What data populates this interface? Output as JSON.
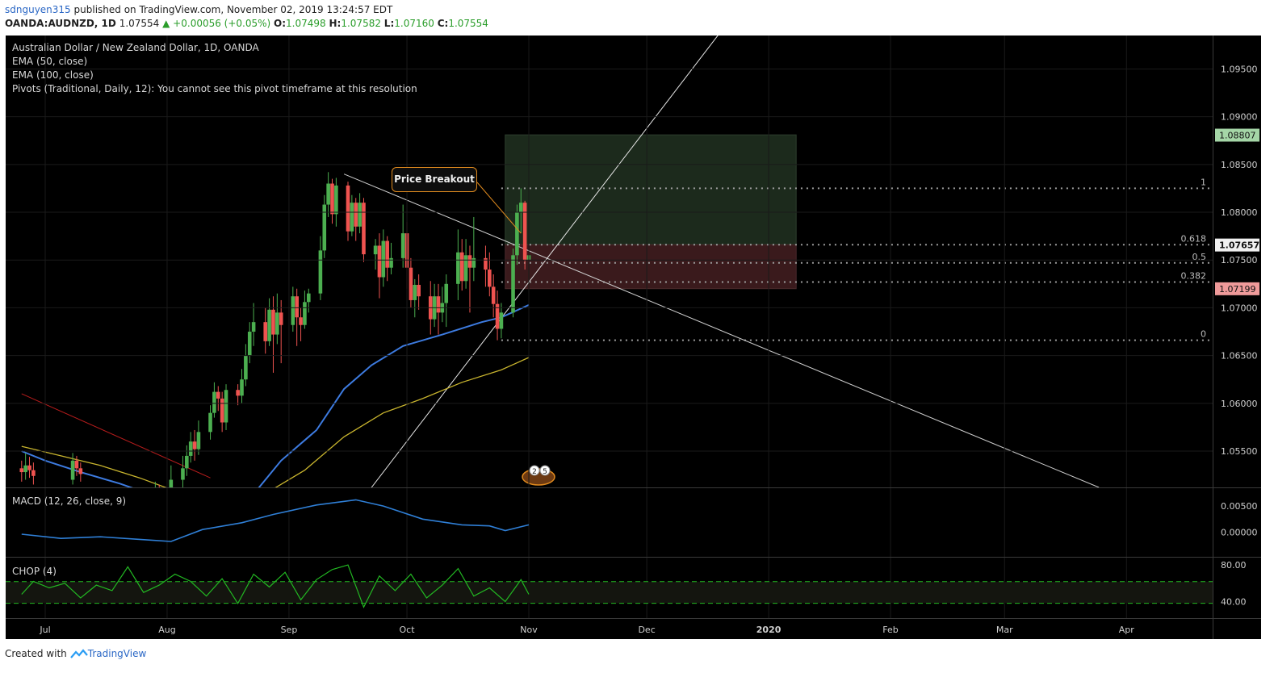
{
  "header": {
    "user": "sdnguyen315",
    "published_text": "published on TradingView.com, November 02, 2019 13:24:57 EDT",
    "symbol": "OANDA:AUDNZD, 1D",
    "last": "1.07554",
    "change": "▲ +0.00056 (+0.05%)",
    "ohlc_o_label": "O:",
    "ohlc_o": "1.07498",
    "ohlc_h_label": "H:",
    "ohlc_h": "1.07582",
    "ohlc_l_label": "L:",
    "ohlc_l": "1.07160",
    "ohlc_c_label": "C:",
    "ohlc_c": "1.07554"
  },
  "legend": {
    "title": "Australian Dollar / New Zealand Dollar, 1D, OANDA",
    "ema50": "EMA (50, close)",
    "ema100": "EMA (100, close)",
    "pivots": "Pivots (Traditional, Daily, 12): You cannot see this pivot timeframe at this resolution"
  },
  "annotation": {
    "callout": "Price Breakout"
  },
  "indicators": {
    "macd_label": "MACD (12, 26, close, 9)",
    "chop_label": "CHOP (4)"
  },
  "footer": {
    "created_with": "Created with",
    "brand": "TradingView"
  },
  "colors": {
    "background": "#000000",
    "up": "#4caf50",
    "down": "#ef5350",
    "ema50": "#3d7be0",
    "ema100": "#c9b52e",
    "macd": "#2f7fd6",
    "chop": "#22b822",
    "target_zone": "#1c2a1c",
    "stop_zone": "#3a1a1c",
    "price_tag_target": "#a5d6a7",
    "price_tag_current": "#f0f0f0",
    "price_tag_stop": "#ef9a9a"
  },
  "chart_data": {
    "type": "candlestick",
    "y_axis_ticks": [
      "1.09500",
      "1.09000",
      "1.08500",
      "1.08000",
      "1.07500",
      "1.07000",
      "1.06500",
      "1.06000",
      "1.05500"
    ],
    "ylim": [
      1.0512,
      1.0985
    ],
    "x_axis_labels": [
      "Jul",
      "Aug",
      "Sep",
      "Oct",
      "Nov",
      "Dec",
      "2020",
      "Feb",
      "Mar",
      "Apr"
    ],
    "x_axis_dates": [
      "2019-07-01",
      "2019-08-01",
      "2019-09-01",
      "2019-10-01",
      "2019-11-01",
      "2019-12-01",
      "2020-01-01",
      "2020-02-01",
      "2020-03-01",
      "2020-04-01"
    ],
    "price_labels": {
      "target": "1.08807",
      "current": "1.07657",
      "stop": "1.07199"
    },
    "fib_levels": [
      {
        "label": "1",
        "value": 1.0825
      },
      {
        "label": "0.618",
        "value": 1.0766
      },
      {
        "label": "0.5",
        "value": 1.0747
      },
      {
        "label": "0.382",
        "value": 1.0727
      },
      {
        "label": "0",
        "value": 1.0666
      }
    ],
    "position": {
      "entry": 1.0766,
      "target": 1.0881,
      "stop": 1.072
    },
    "candles": [
      [
        "2019-06-25",
        1.0532,
        1.0528,
        1.054,
        1.0518
      ],
      [
        "2019-06-26",
        1.0528,
        1.0535,
        1.0548,
        1.052
      ],
      [
        "2019-06-27",
        1.0535,
        1.053,
        1.0544,
        1.0522
      ],
      [
        "2019-06-28",
        1.053,
        1.0524,
        1.0538,
        1.0515
      ],
      [
        "2019-07-08",
        1.052,
        1.054,
        1.0548,
        1.0515
      ],
      [
        "2019-07-09",
        1.054,
        1.0532,
        1.0545,
        1.0524
      ],
      [
        "2019-07-10",
        1.0532,
        1.0526,
        1.0538,
        1.0518
      ],
      [
        "2019-07-29",
        1.0505,
        1.051,
        1.0518,
        1.0498
      ],
      [
        "2019-07-30",
        1.051,
        1.0505,
        1.0515,
        1.0495
      ],
      [
        "2019-08-02",
        1.0508,
        1.052,
        1.0535,
        1.0502
      ],
      [
        "2019-08-05",
        1.052,
        1.0532,
        1.0545,
        1.0512
      ],
      [
        "2019-08-06",
        1.0532,
        1.0545,
        1.0556,
        1.0524
      ],
      [
        "2019-08-07",
        1.0545,
        1.056,
        1.057,
        1.0538
      ],
      [
        "2019-08-08",
        1.056,
        1.0552,
        1.0572,
        1.054
      ],
      [
        "2019-08-09",
        1.0552,
        1.057,
        1.0582,
        1.0546
      ],
      [
        "2019-08-12",
        1.057,
        1.059,
        1.0598,
        1.0562
      ],
      [
        "2019-08-13",
        1.059,
        1.0612,
        1.0622,
        1.0585
      ],
      [
        "2019-08-14",
        1.0612,
        1.0605,
        1.0618,
        1.0592
      ],
      [
        "2019-08-15",
        1.0605,
        1.058,
        1.0612,
        1.057
      ],
      [
        "2019-08-16",
        1.058,
        1.0614,
        1.062,
        1.0572
      ],
      [
        "2019-08-19",
        1.0614,
        1.0608,
        1.062,
        1.0598
      ],
      [
        "2019-08-20",
        1.0608,
        1.0625,
        1.0636,
        1.06
      ],
      [
        "2019-08-21",
        1.0625,
        1.065,
        1.0662,
        1.0618
      ],
      [
        "2019-08-22",
        1.065,
        1.0675,
        1.0685,
        1.0642
      ],
      [
        "2019-08-23",
        1.0675,
        1.0685,
        1.0705,
        1.066
      ],
      [
        "2019-08-26",
        1.0685,
        1.0665,
        1.07,
        1.0652
      ],
      [
        "2019-08-27",
        1.0665,
        1.0698,
        1.071,
        1.066
      ],
      [
        "2019-08-28",
        1.0698,
        1.0672,
        1.0712,
        1.0632
      ],
      [
        "2019-08-29",
        1.0672,
        1.0695,
        1.0715,
        1.0662
      ],
      [
        "2019-08-30",
        1.0695,
        1.0682,
        1.0708,
        1.0642
      ],
      [
        "2019-09-02",
        1.0682,
        1.0712,
        1.0722,
        1.0675
      ],
      [
        "2019-09-03",
        1.0712,
        1.069,
        1.072,
        1.066
      ],
      [
        "2019-09-04",
        1.069,
        1.0682,
        1.07,
        1.0665
      ],
      [
        "2019-09-05",
        1.0682,
        1.0706,
        1.0718,
        1.0678
      ],
      [
        "2019-09-06",
        1.0706,
        1.0715,
        1.072,
        1.0695
      ],
      [
        "2019-09-09",
        1.0715,
        1.076,
        1.0775,
        1.0708
      ],
      [
        "2019-09-10",
        1.076,
        1.0808,
        1.0818,
        1.0752
      ],
      [
        "2019-09-11",
        1.0808,
        1.083,
        1.0842,
        1.0795
      ],
      [
        "2019-09-12",
        1.083,
        1.0798,
        1.0835,
        1.0788
      ],
      [
        "2019-09-13",
        1.0798,
        1.0828,
        1.0836,
        1.0785
      ],
      [
        "2019-09-16",
        1.0828,
        1.078,
        1.0832,
        1.077
      ],
      [
        "2019-09-17",
        1.078,
        1.081,
        1.0818,
        1.0775
      ],
      [
        "2019-09-18",
        1.081,
        1.0785,
        1.0815,
        1.077
      ],
      [
        "2019-09-19",
        1.0785,
        1.081,
        1.082,
        1.0778
      ],
      [
        "2019-09-20",
        1.081,
        1.0756,
        1.0815,
        1.0748
      ],
      [
        "2019-09-23",
        1.0756,
        1.0765,
        1.0772,
        1.074
      ],
      [
        "2019-09-24",
        1.0765,
        1.0732,
        1.0778,
        1.071
      ],
      [
        "2019-09-25",
        1.0732,
        1.077,
        1.0782,
        1.0722
      ],
      [
        "2019-09-26",
        1.077,
        1.0742,
        1.0775,
        1.0728
      ],
      [
        "2019-09-27",
        1.0742,
        1.0752,
        1.0768,
        1.0735
      ],
      [
        "2019-09-30",
        1.0752,
        1.0778,
        1.0808,
        1.0742
      ],
      [
        "2019-10-01",
        1.0778,
        1.0742,
        1.079,
        1.072
      ],
      [
        "2019-10-02",
        1.0742,
        1.0708,
        1.0752,
        1.07
      ],
      [
        "2019-10-03",
        1.0708,
        1.0724,
        1.073,
        1.069
      ],
      [
        "2019-10-04",
        1.0724,
        1.0712,
        1.0735,
        1.0698
      ],
      [
        "2019-10-07",
        1.0712,
        1.0688,
        1.0728,
        1.0672
      ],
      [
        "2019-10-08",
        1.0688,
        1.0712,
        1.0725,
        1.068
      ],
      [
        "2019-10-09",
        1.0712,
        1.0695,
        1.0725,
        1.0672
      ],
      [
        "2019-10-10",
        1.0695,
        1.0705,
        1.0722,
        1.0685
      ],
      [
        "2019-10-11",
        1.0705,
        1.0725,
        1.0735,
        1.068
      ],
      [
        "2019-10-14",
        1.0725,
        1.0758,
        1.0782,
        1.0708
      ],
      [
        "2019-10-15",
        1.0758,
        1.0728,
        1.0772,
        1.0718
      ],
      [
        "2019-10-16",
        1.0728,
        1.0755,
        1.0772,
        1.072
      ],
      [
        "2019-10-17",
        1.0755,
        1.0742,
        1.0765,
        1.0695
      ],
      [
        "2019-10-18",
        1.0742,
        1.0752,
        1.0795,
        1.0728
      ],
      [
        "2019-10-21",
        1.0752,
        1.074,
        1.0765,
        1.0722
      ],
      [
        "2019-10-22",
        1.074,
        1.0722,
        1.0758,
        1.0712
      ],
      [
        "2019-10-23",
        1.0722,
        1.0704,
        1.0735,
        1.069
      ],
      [
        "2019-10-24",
        1.0704,
        1.0678,
        1.0718,
        1.0666
      ],
      [
        "2019-10-25",
        1.0678,
        1.0695,
        1.0705,
        1.0668
      ],
      [
        "2019-10-28",
        1.0695,
        1.0755,
        1.0762,
        1.069
      ],
      [
        "2019-10-29",
        1.0755,
        1.08,
        1.0808,
        1.0745
      ],
      [
        "2019-10-30",
        1.08,
        1.081,
        1.0825,
        1.0778
      ],
      [
        "2019-10-31",
        1.081,
        1.075,
        1.0812,
        1.074
      ],
      [
        "2019-11-01",
        1.075,
        1.0755,
        1.0758,
        1.0716
      ]
    ],
    "ema50": [
      [
        "2019-06-25",
        1.055
      ],
      [
        "2019-07-01",
        1.054
      ],
      [
        "2019-07-10",
        1.0528
      ],
      [
        "2019-07-20",
        1.0516
      ],
      [
        "2019-07-31",
        1.05
      ],
      [
        "2019-08-15",
        1.049
      ],
      [
        "2019-08-23",
        1.0505
      ],
      [
        "2019-08-30",
        1.054
      ],
      [
        "2019-09-08",
        1.0572
      ],
      [
        "2019-09-15",
        1.0615
      ],
      [
        "2019-09-22",
        1.064
      ],
      [
        "2019-09-30",
        1.066
      ],
      [
        "2019-10-10",
        1.0672
      ],
      [
        "2019-10-20",
        1.0685
      ],
      [
        "2019-10-25",
        1.069
      ],
      [
        "2019-11-01",
        1.0703
      ]
    ],
    "ema100": [
      [
        "2019-06-25",
        1.0555
      ],
      [
        "2019-07-05",
        1.0545
      ],
      [
        "2019-07-15",
        1.0535
      ],
      [
        "2019-07-25",
        1.0522
      ],
      [
        "2019-08-15",
        1.049
      ],
      [
        "2019-08-25",
        1.0503
      ],
      [
        "2019-09-05",
        1.053
      ],
      [
        "2019-09-15",
        1.0565
      ],
      [
        "2019-09-25",
        1.059
      ],
      [
        "2019-10-05",
        1.0605
      ],
      [
        "2019-10-15",
        1.0622
      ],
      [
        "2019-10-25",
        1.0635
      ],
      [
        "2019-11-01",
        1.0648
      ]
    ],
    "trendlines": [
      {
        "from": [
          "2019-09-15",
          1.084
        ],
        "to": [
          "2020-03-25",
          1.0512
        ],
        "color": "#cfcfcf"
      },
      {
        "from": [
          "2019-09-22",
          1.0512
        ],
        "to": [
          "2019-12-20",
          1.099
        ],
        "color": "#e8e8e8"
      },
      {
        "from": [
          "2019-06-25",
          1.061
        ],
        "to": [
          "2019-08-12",
          1.0522
        ],
        "color": "#b71c1c"
      }
    ],
    "macd": {
      "ticks": [
        "0.00500",
        "0.00000"
      ],
      "ylim": [
        -0.0035,
        0.0075
      ],
      "values": [
        [
          "2019-06-25",
          -0.0004
        ],
        [
          "2019-07-05",
          -0.0012
        ],
        [
          "2019-07-15",
          -0.0009
        ],
        [
          "2019-07-25",
          -0.0014
        ],
        [
          "2019-08-02",
          -0.0018
        ],
        [
          "2019-08-10",
          0.0005
        ],
        [
          "2019-08-20",
          0.0018
        ],
        [
          "2019-08-28",
          0.0034
        ],
        [
          "2019-09-08",
          0.0052
        ],
        [
          "2019-09-18",
          0.0062
        ],
        [
          "2019-09-25",
          0.005
        ],
        [
          "2019-10-05",
          0.0025
        ],
        [
          "2019-10-15",
          0.0014
        ],
        [
          "2019-10-22",
          0.0012
        ],
        [
          "2019-10-26",
          0.0003
        ],
        [
          "2019-11-01",
          0.0014
        ]
      ]
    },
    "chop": {
      "ticks": [
        "80.00",
        "40.00"
      ],
      "ylim": [
        22,
        88
      ],
      "bands": [
        61.8,
        38.2
      ],
      "values": [
        [
          "2019-06-25",
          48
        ],
        [
          "2019-06-28",
          62
        ],
        [
          "2019-07-02",
          55
        ],
        [
          "2019-07-06",
          60
        ],
        [
          "2019-07-10",
          44
        ],
        [
          "2019-07-14",
          58
        ],
        [
          "2019-07-18",
          52
        ],
        [
          "2019-07-22",
          78
        ],
        [
          "2019-07-26",
          50
        ],
        [
          "2019-07-30",
          58
        ],
        [
          "2019-08-03",
          70
        ],
        [
          "2019-08-07",
          62
        ],
        [
          "2019-08-11",
          46
        ],
        [
          "2019-08-15",
          65
        ],
        [
          "2019-08-19",
          38
        ],
        [
          "2019-08-23",
          70
        ],
        [
          "2019-08-27",
          56
        ],
        [
          "2019-08-31",
          72
        ],
        [
          "2019-09-04",
          42
        ],
        [
          "2019-09-08",
          64
        ],
        [
          "2019-09-12",
          75
        ],
        [
          "2019-09-16",
          80
        ],
        [
          "2019-09-20",
          34
        ],
        [
          "2019-09-24",
          68
        ],
        [
          "2019-09-28",
          52
        ],
        [
          "2019-10-02",
          70
        ],
        [
          "2019-10-06",
          44
        ],
        [
          "2019-10-10",
          58
        ],
        [
          "2019-10-14",
          76
        ],
        [
          "2019-10-18",
          46
        ],
        [
          "2019-10-22",
          55
        ],
        [
          "2019-10-26",
          40
        ],
        [
          "2019-10-30",
          64
        ],
        [
          "2019-11-01",
          48
        ]
      ]
    },
    "grid": true
  }
}
